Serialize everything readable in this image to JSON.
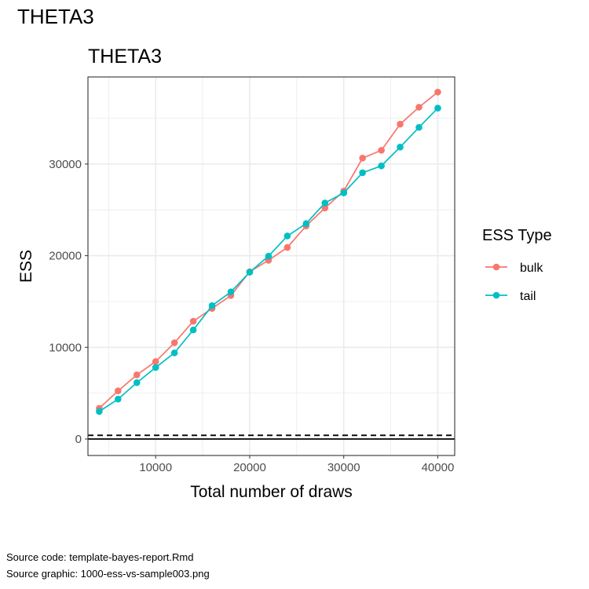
{
  "page_title": "THETA3",
  "footer": {
    "source_code": "Source code: template-bayes-report.Rmd",
    "source_graphic": "Source graphic: 1000-ess-vs-sample003.png"
  },
  "chart_data": {
    "type": "line",
    "title": "THETA3",
    "xlabel": "Total number of draws",
    "ylabel": "ESS",
    "xlim": [
      2800,
      41800
    ],
    "ylim": [
      -1800,
      39500
    ],
    "xticks": [
      10000,
      20000,
      30000,
      40000
    ],
    "yticks": [
      0,
      10000,
      20000,
      30000
    ],
    "x_tick_labels": [
      "10000",
      "20000",
      "30000",
      "40000"
    ],
    "y_tick_labels": [
      "0",
      "10000",
      "20000",
      "30000"
    ],
    "grid": true,
    "hlines": [
      {
        "y": 0,
        "style": "solid"
      },
      {
        "y": 400,
        "style": "dashed"
      }
    ],
    "legend": {
      "title": "ESS Type",
      "position": "right"
    },
    "x": [
      4000,
      6000,
      8000,
      10000,
      12000,
      14000,
      16000,
      18000,
      20000,
      22000,
      24000,
      26000,
      28000,
      30000,
      32000,
      34000,
      36000,
      38000,
      40000
    ],
    "series": [
      {
        "name": "bulk",
        "color": "#F8766D",
        "values": [
          3350,
          5250,
          7000,
          8450,
          10500,
          12850,
          14250,
          15650,
          18250,
          19500,
          20900,
          23250,
          25200,
          27050,
          30650,
          31500,
          34350,
          36200,
          37850
        ]
      },
      {
        "name": "tail",
        "color": "#00BFC4",
        "values": [
          3000,
          4350,
          6150,
          7800,
          9400,
          11900,
          14550,
          16050,
          18200,
          19950,
          22150,
          23500,
          25750,
          26850,
          29050,
          29800,
          31850,
          34000,
          36100
        ]
      }
    ]
  }
}
